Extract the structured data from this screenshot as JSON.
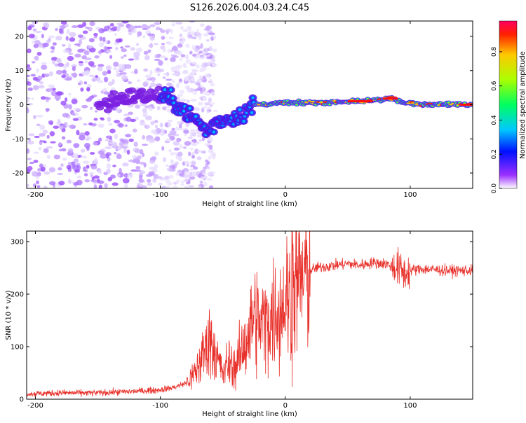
{
  "title": "S126.2026.004.03.24.C45",
  "chart_data": [
    {
      "type": "heatmap",
      "xlabel": "Height of straight line (km)",
      "ylabel": "Frequency (Hz)",
      "xlim": [
        -207,
        150
      ],
      "ylim": [
        -24.5,
        24.5
      ],
      "xticks": [
        -200,
        -100,
        0,
        100
      ],
      "yticks": [
        20,
        10,
        0,
        -10,
        -20
      ],
      "colorbar": {
        "label": "Normalized spectral amplitude",
        "range": [
          0,
          0.98
        ],
        "ticks": [
          0.0,
          0.2,
          0.4,
          0.6,
          0.8
        ]
      },
      "ridge": [
        {
          "x": -140,
          "y": 1.5
        },
        {
          "x": -120,
          "y": 2.5
        },
        {
          "x": -100,
          "y": 2.5
        },
        {
          "x": -90,
          "y": 1
        },
        {
          "x": -80,
          "y": -2
        },
        {
          "x": -70,
          "y": -5
        },
        {
          "x": -62,
          "y": -8
        },
        {
          "x": -55,
          "y": -5
        },
        {
          "x": -45,
          "y": -4
        },
        {
          "x": -35,
          "y": -3
        },
        {
          "x": -25,
          "y": 0
        },
        {
          "x": -15,
          "y": 0.2
        },
        {
          "x": 0,
          "y": 0.5
        },
        {
          "x": 20,
          "y": 0.5
        },
        {
          "x": 40,
          "y": 0.8
        },
        {
          "x": 60,
          "y": 1
        },
        {
          "x": 75,
          "y": 1.5
        },
        {
          "x": 85,
          "y": 1.8
        },
        {
          "x": 95,
          "y": 0.5
        },
        {
          "x": 110,
          "y": 0.2
        },
        {
          "x": 130,
          "y": 0.2
        },
        {
          "x": 150,
          "y": 0
        }
      ]
    },
    {
      "type": "line",
      "xlabel": "Height of straight line (km)",
      "ylabel": "SNR (10 * v/v)",
      "xlim": [
        -207,
        150
      ],
      "ylim": [
        0,
        320
      ],
      "xticks": [
        -200,
        -100,
        0,
        100
      ],
      "yticks": [
        0,
        100,
        200,
        300
      ],
      "series": [
        {
          "name": "SNR",
          "color": "#e8302a",
          "x": [
            -207,
            -180,
            -150,
            -120,
            -100,
            -90,
            -80,
            -75,
            -70,
            -65,
            -60,
            -55,
            -50,
            -45,
            -40,
            -35,
            -30,
            -25,
            -20,
            -15,
            -10,
            -5,
            0,
            5,
            10,
            15,
            20,
            25,
            30,
            40,
            50,
            60,
            70,
            80,
            90,
            95,
            100,
            110,
            130,
            150
          ],
          "values": [
            10,
            12,
            12,
            15,
            18,
            22,
            30,
            40,
            60,
            90,
            120,
            80,
            50,
            70,
            60,
            90,
            120,
            160,
            140,
            150,
            160,
            170,
            190,
            200,
            220,
            230,
            245,
            250,
            252,
            255,
            258,
            255,
            260,
            258,
            250,
            240,
            245,
            248,
            245,
            245
          ]
        }
      ]
    }
  ]
}
